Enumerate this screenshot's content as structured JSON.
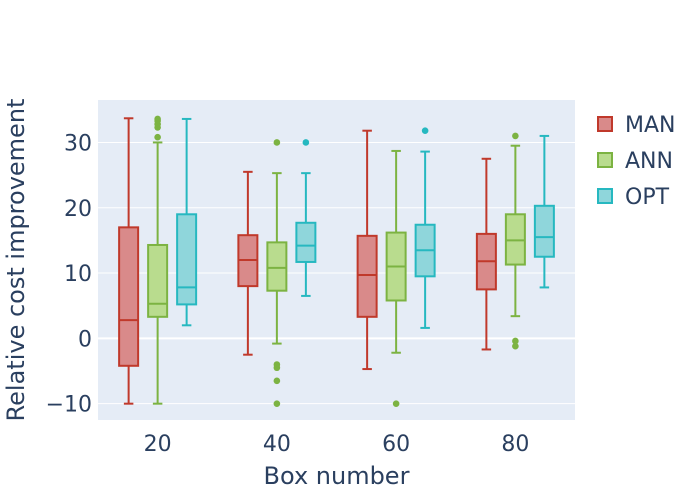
{
  "chart_data": {
    "type": "box",
    "title": "",
    "xlabel": "Box number",
    "ylabel": "Relative cost improvement",
    "categories": [
      "20",
      "40",
      "60",
      "80"
    ],
    "yticks": [
      -10,
      0,
      10,
      20,
      30
    ],
    "ytick_labels": [
      "−10",
      "0",
      "10",
      "20",
      "30"
    ],
    "ylim": [
      -12.5,
      36.5
    ],
    "grid": true,
    "legend_position": "top-right",
    "series": [
      {
        "name": "MAN",
        "color": "#c0392b",
        "fill": "#d98a8a",
        "boxes": [
          {
            "min": -10,
            "q1": -4.2,
            "median": 2.8,
            "q3": 17,
            "max": 33.7,
            "outliers": []
          },
          {
            "min": -2.5,
            "q1": 8,
            "median": 12,
            "q3": 15.8,
            "max": 25.5,
            "outliers": []
          },
          {
            "min": -4.7,
            "q1": 3.3,
            "median": 9.7,
            "q3": 15.7,
            "max": 31.8,
            "outliers": []
          },
          {
            "min": -1.7,
            "q1": 7.5,
            "median": 11.8,
            "q3": 16,
            "max": 27.5,
            "outliers": []
          }
        ]
      },
      {
        "name": "ANN",
        "color": "#7cb342",
        "fill": "#b9dc8e",
        "boxes": [
          {
            "min": -10,
            "q1": 3.3,
            "median": 5.3,
            "q3": 14.3,
            "max": 30,
            "outliers": [
              30.8,
              32.3,
              32.8,
              33.3,
              33.6
            ]
          },
          {
            "min": -0.8,
            "q1": 7.3,
            "median": 10.8,
            "q3": 14.7,
            "max": 25.3,
            "outliers": [
              30,
              -4,
              -4.5,
              -6.5,
              -10
            ]
          },
          {
            "min": -2.2,
            "q1": 5.8,
            "median": 11,
            "q3": 16.2,
            "max": 28.7,
            "outliers": [
              -10
            ]
          },
          {
            "min": 3.4,
            "q1": 11.3,
            "median": 15,
            "q3": 19,
            "max": 29.5,
            "outliers": [
              31,
              -0.4,
              -1.2
            ]
          }
        ]
      },
      {
        "name": "OPT",
        "color": "#26b8c0",
        "fill": "#8fd6db",
        "boxes": [
          {
            "min": 2,
            "q1": 5.2,
            "median": 7.8,
            "q3": 19,
            "max": 33.6,
            "outliers": []
          },
          {
            "min": 6.5,
            "q1": 11.7,
            "median": 14.2,
            "q3": 17.7,
            "max": 25.3,
            "outliers": [
              30
            ]
          },
          {
            "min": 1.6,
            "q1": 9.5,
            "median": 13.5,
            "q3": 17.4,
            "max": 28.6,
            "outliers": [
              31.8
            ]
          },
          {
            "min": 7.8,
            "q1": 12.5,
            "median": 15.5,
            "q3": 20.3,
            "max": 31,
            "outliers": []
          }
        ]
      }
    ]
  }
}
